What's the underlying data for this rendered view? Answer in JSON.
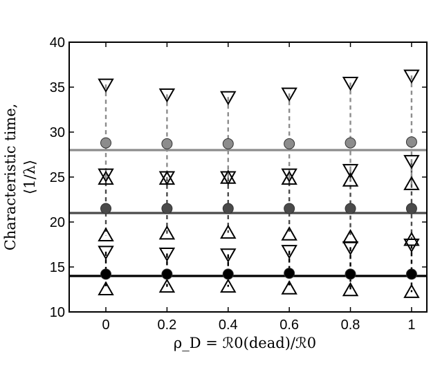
{
  "chart_data": {
    "type": "scatter",
    "title": "",
    "xlabel": "ρ_D = ℛ0(dead)/ℛ0",
    "ylabel_line1": "Characteristic time,",
    "ylabel_line2": "⟨1/λ⟩",
    "xlim": [
      -0.12,
      1.05
    ],
    "ylim": [
      10,
      40
    ],
    "x_ticks": [
      0,
      0.2,
      0.4,
      0.6,
      0.8,
      1
    ],
    "x_tick_labels": [
      "0",
      "0.2",
      "0.4",
      "0.6",
      "0.8",
      "1"
    ],
    "y_ticks": [
      10,
      15,
      20,
      25,
      30,
      35,
      40
    ],
    "y_tick_labels": [
      "10",
      "15",
      "20",
      "25",
      "30",
      "35",
      "40"
    ],
    "grid": false,
    "x": [
      0,
      0.2,
      0.4,
      0.6,
      0.8,
      1
    ],
    "groups": [
      {
        "color": "#000000",
        "horizontal_line": 14.0,
        "circle": [
          14.2,
          14.2,
          14.2,
          14.3,
          14.2,
          14.2
        ],
        "triangle_up": [
          12.5,
          12.8,
          12.8,
          12.6,
          12.4,
          12.2
        ],
        "triangle_down": [
          16.7,
          16.5,
          16.4,
          16.8,
          17.2,
          17.5
        ]
      },
      {
        "color": "#4a4a4a",
        "horizontal_line": 21.0,
        "circle": [
          21.5,
          21.5,
          21.5,
          21.5,
          21.5,
          21.5
        ],
        "triangle_up": [
          18.5,
          18.7,
          18.8,
          18.6,
          18.3,
          18.0
        ],
        "triangle_down": [
          25.3,
          25.0,
          25.0,
          25.3,
          25.8,
          26.8
        ]
      },
      {
        "color": "#8c8c8c",
        "horizontal_line": 28.0,
        "circle": [
          28.8,
          28.7,
          28.7,
          28.7,
          28.8,
          28.9
        ],
        "triangle_up": [
          24.8,
          24.8,
          24.9,
          24.8,
          24.6,
          24.2
        ],
        "triangle_down": [
          35.3,
          34.2,
          33.9,
          34.3,
          35.5,
          36.3
        ]
      }
    ]
  }
}
